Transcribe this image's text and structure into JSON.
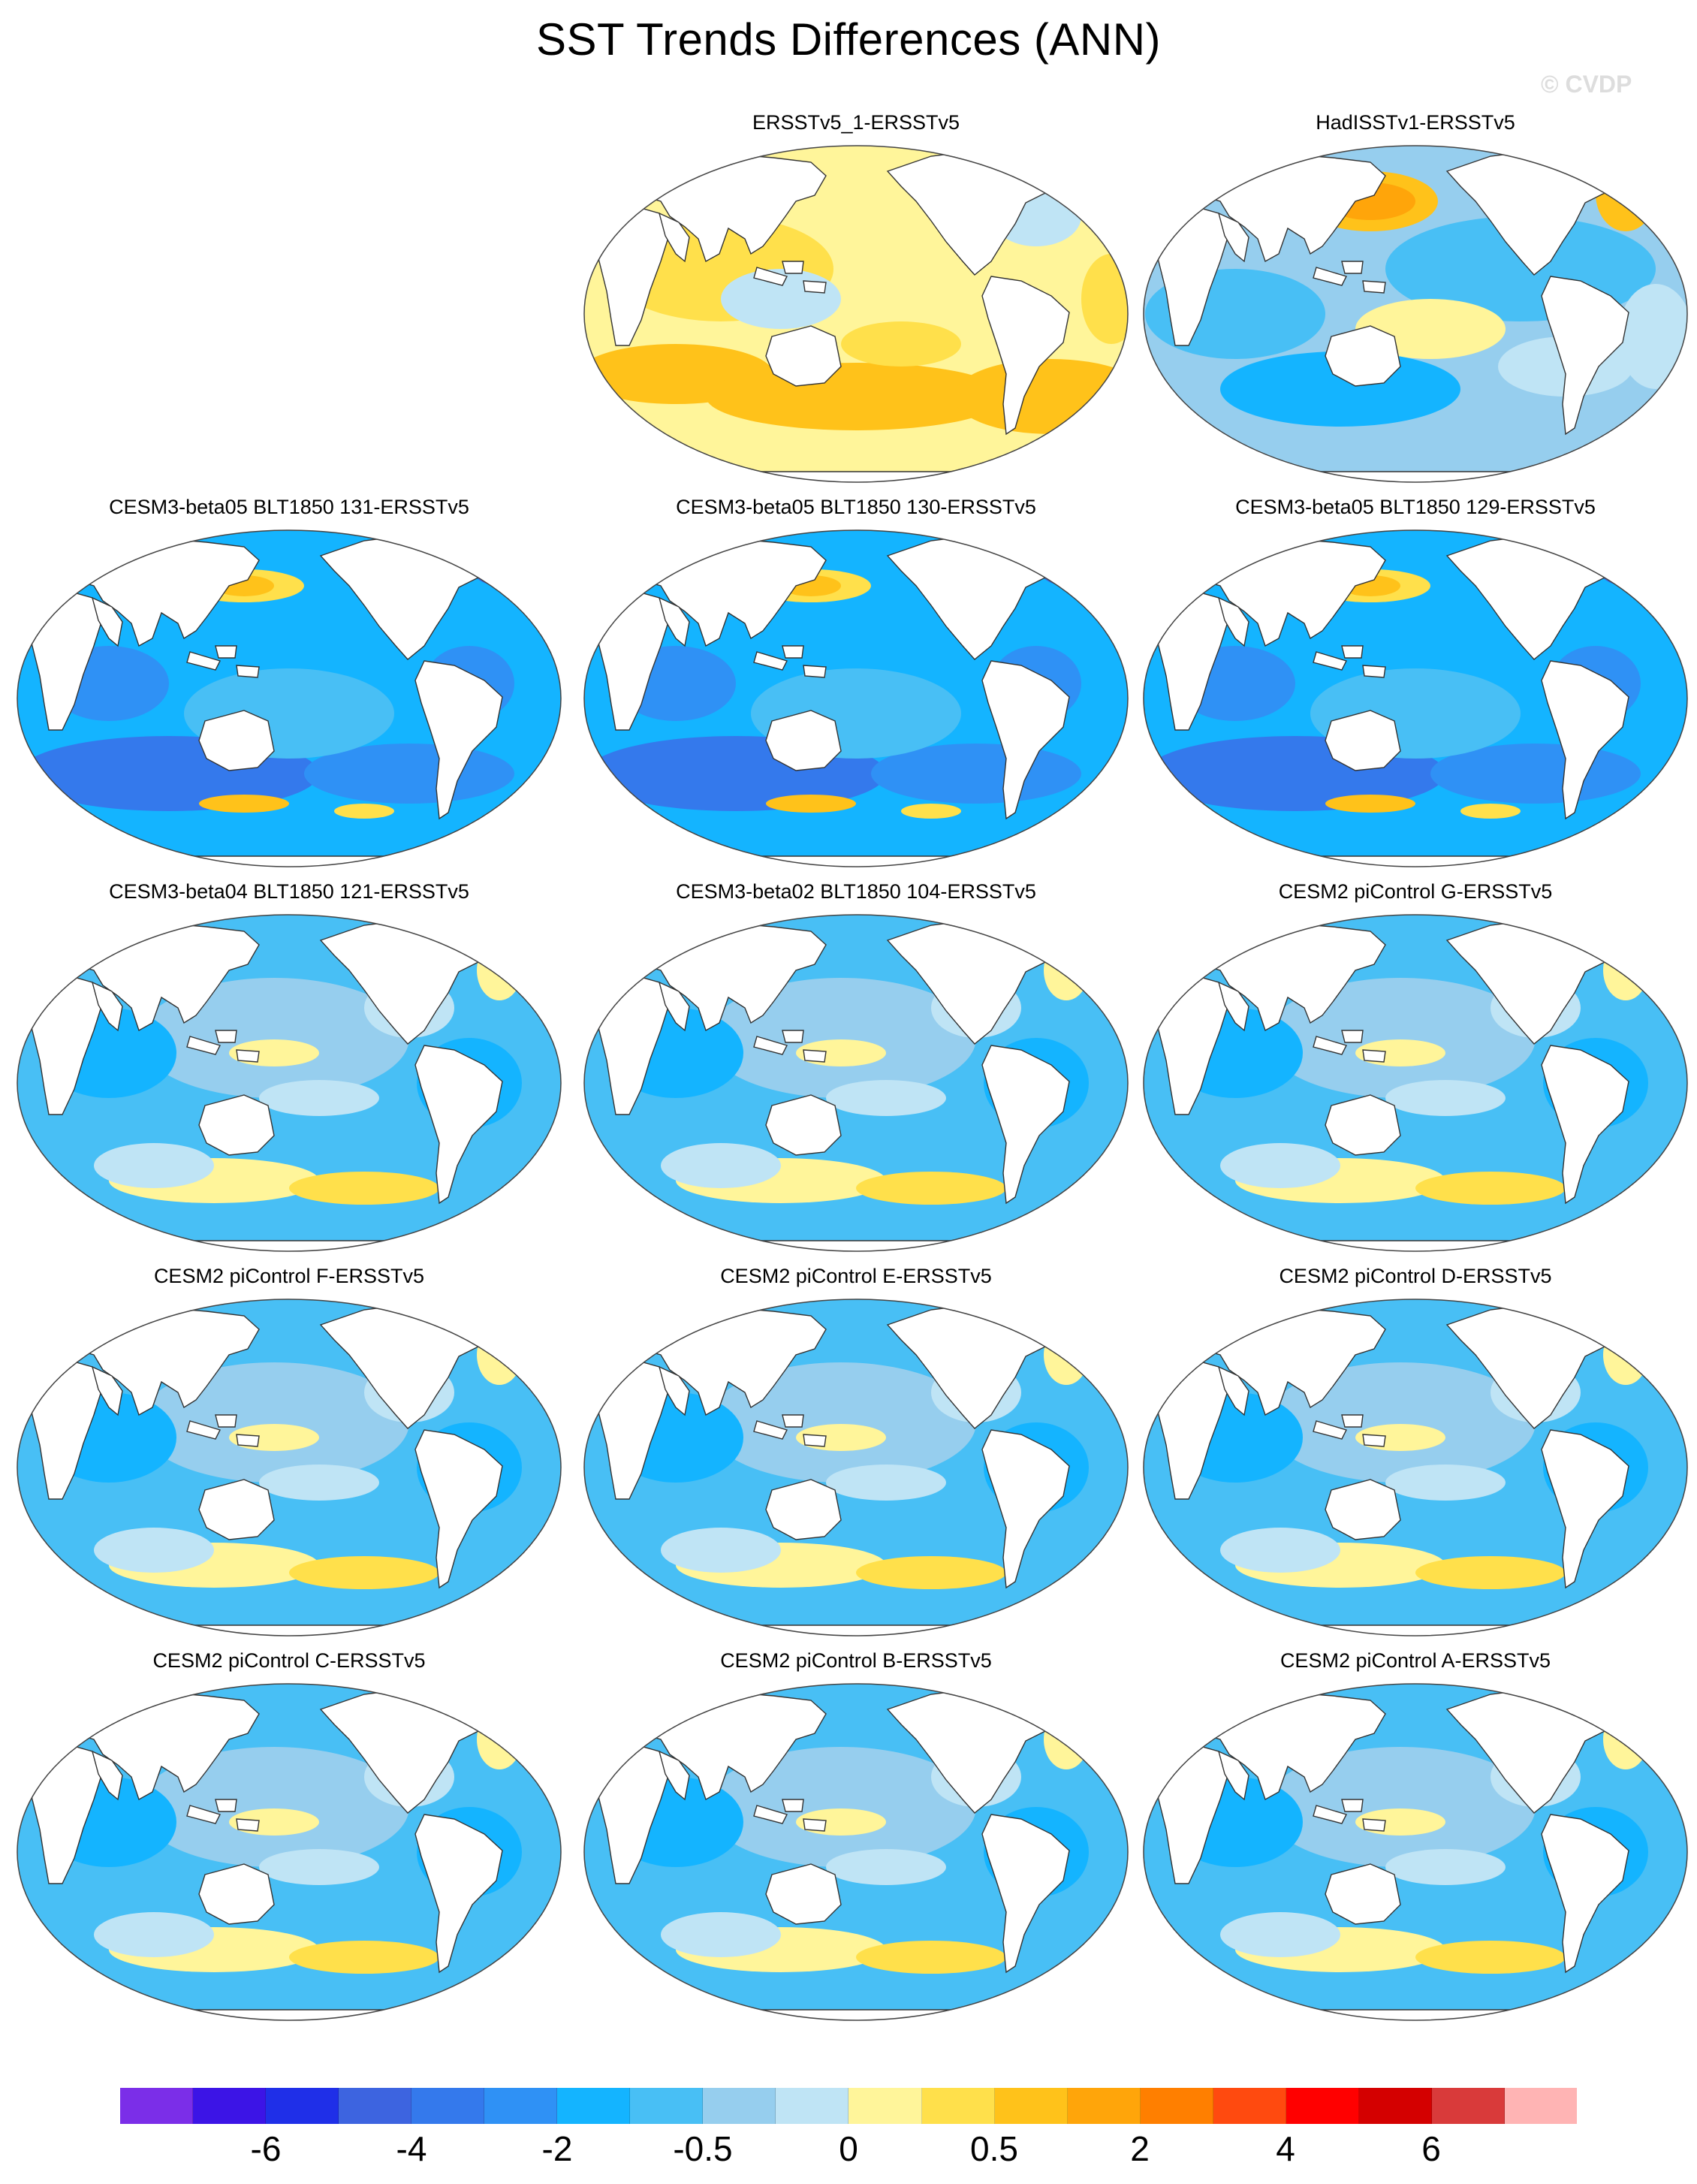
{
  "title": "SST Trends Differences (ANN)",
  "watermark": "© CVDP",
  "panels": [
    {
      "title": "",
      "empty": true
    },
    {
      "title": "ERSSTv5_1-ERSSTv5",
      "style": "warm"
    },
    {
      "title": "HadISSTv1-ERSSTv5",
      "style": "mixed-cool"
    },
    {
      "title": "CESM3-beta05 BLT1850 131-ERSSTv5",
      "style": "strong-cool"
    },
    {
      "title": "CESM3-beta05 BLT1850 130-ERSSTv5",
      "style": "strong-cool"
    },
    {
      "title": "CESM3-beta05 BLT1850 129-ERSSTv5",
      "style": "strong-cool"
    },
    {
      "title": "CESM3-beta04 BLT1850 121-ERSSTv5",
      "style": "cool"
    },
    {
      "title": "CESM3-beta02 BLT1850 104-ERSSTv5",
      "style": "cool"
    },
    {
      "title": "CESM2 piControl G-ERSSTv5",
      "style": "cool"
    },
    {
      "title": "CESM2 piControl F-ERSSTv5",
      "style": "cool"
    },
    {
      "title": "CESM2 piControl E-ERSSTv5",
      "style": "cool"
    },
    {
      "title": "CESM2 piControl D-ERSSTv5",
      "style": "cool"
    },
    {
      "title": "CESM2 piControl C-ERSSTv5",
      "style": "cool"
    },
    {
      "title": "CESM2 piControl B-ERSSTv5",
      "style": "cool"
    },
    {
      "title": "CESM2 piControl A-ERSSTv5",
      "style": "cool"
    }
  ],
  "colorbar": {
    "colors": [
      "#7b2ee8",
      "#3c14e6",
      "#1f2fe8",
      "#3d64e0",
      "#3479ec",
      "#2f91f5",
      "#14b4ff",
      "#48bff5",
      "#96ceee",
      "#bfe4f5",
      "#fff59a",
      "#ffe04b",
      "#ffc21a",
      "#ffa50a",
      "#ff7f00",
      "#ff4a0f",
      "#ff0000",
      "#d40000",
      "#d93a3a",
      "#ffb4b4"
    ],
    "tick_labels": [
      {
        "text": "-6",
        "boundary": 2
      },
      {
        "text": "-4",
        "boundary": 4
      },
      {
        "text": "-2",
        "boundary": 6
      },
      {
        "text": "-0.5",
        "boundary": 8
      },
      {
        "text": "0",
        "boundary": 10
      },
      {
        "text": "0.5",
        "boundary": 12
      },
      {
        "text": "2",
        "boundary": 14
      },
      {
        "text": "4",
        "boundary": 16
      },
      {
        "text": "6",
        "boundary": 18
      }
    ]
  }
}
